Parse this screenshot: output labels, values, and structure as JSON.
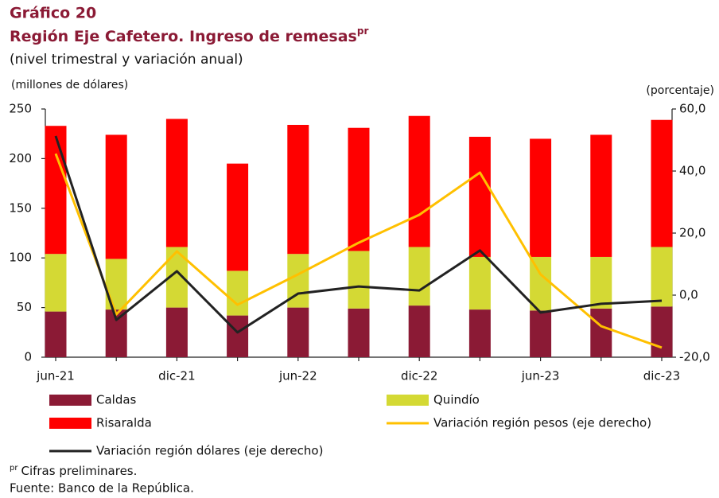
{
  "chart_data": {
    "type": "bar",
    "kicker": "Gráfico 20",
    "title": "Región Eje Cafetero. Ingreso de remesas",
    "title_sup": "pr",
    "subtitle": "(nivel trimestral y variación anual)",
    "ylabel": "(millones de dólares)",
    "y2label": "(porcentaje)",
    "categories": [
      "jun-21",
      null,
      "dic-21",
      null,
      "jun-22",
      null,
      "dic-22",
      null,
      "jun-23",
      null,
      "dic-23"
    ],
    "series": [
      {
        "name": "Caldas",
        "type": "bar",
        "color": "#8b1a35",
        "values": [
          46,
          48,
          50,
          42,
          50,
          49,
          52,
          48,
          47,
          49,
          51
        ]
      },
      {
        "name": "Quindío",
        "type": "bar",
        "color": "#d4d934",
        "values": [
          58,
          51,
          61,
          45,
          54,
          58,
          59,
          53,
          54,
          52,
          60
        ]
      },
      {
        "name": "Risaralda",
        "type": "bar",
        "color": "#ff0000",
        "values": [
          129,
          125,
          129,
          108,
          130,
          124,
          132,
          121,
          119,
          123,
          128
        ]
      },
      {
        "name": "Variación región pesos (eje derecho)",
        "type": "line",
        "axis": "y2",
        "color": "#ffc000",
        "values": [
          45.6,
          -6.2,
          14.1,
          -3.1,
          6.7,
          16.9,
          25.9,
          39.5,
          6.7,
          -10,
          -16.9
        ]
      },
      {
        "name": "Variación región dólares (eje derecho)",
        "type": "line",
        "axis": "y2",
        "color": "#222222",
        "values": [
          51.3,
          -8,
          7.7,
          -12,
          0.5,
          2.8,
          1.5,
          14.4,
          -5.6,
          -2.8,
          -1.8
        ]
      }
    ],
    "ylim": [
      0,
      250
    ],
    "yticks": [
      0,
      50,
      100,
      150,
      200,
      250
    ],
    "y2lim": [
      -20,
      60
    ],
    "y2ticks": [
      {
        "value": -20,
        "label": "-20,0"
      },
      {
        "value": 0,
        "label": "0,0"
      },
      {
        "value": 20,
        "label": "20,0"
      },
      {
        "value": 40,
        "label": "40,0"
      },
      {
        "value": 60,
        "label": "60,0"
      }
    ],
    "footnote_text": "Cifras preliminares.",
    "source": "Fuente: Banco de la República."
  }
}
